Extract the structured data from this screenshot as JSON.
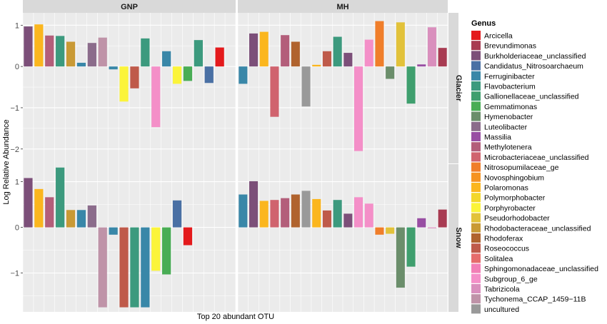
{
  "chart_data": {
    "type": "bar",
    "ylabel": "Log Relative Abundance",
    "xlabel": "Top 20 abundant OTU",
    "columns": [
      "GNP",
      "MH"
    ],
    "rows": [
      "Glacier",
      "Snow"
    ],
    "y_ticks": [
      "1",
      "0",
      "−1",
      "−2"
    ],
    "legend": {
      "title": "Genus",
      "position": "right",
      "items": [
        {
          "name": "Arcicella",
          "color": "#e41a1c"
        },
        {
          "name": "Brevundimonas",
          "color": "#a83b52"
        },
        {
          "name": "Burkholderiaceae_unclassified",
          "color": "#7c4f79"
        },
        {
          "name": "Candidatus_Nitrosoarchaeum",
          "color": "#4a70a4"
        },
        {
          "name": "Ferruginibacter",
          "color": "#3987a8"
        },
        {
          "name": "Flavobacterium",
          "color": "#3c9a7e"
        },
        {
          "name": "Gallionellaceae_unclassified",
          "color": "#3f9f6e"
        },
        {
          "name": "Gemmatimonas",
          "color": "#49ad55"
        },
        {
          "name": "Hymenobacter",
          "color": "#6b8e6b"
        },
        {
          "name": "Luteolibacter",
          "color": "#8b6c8b"
        },
        {
          "name": "Massilia",
          "color": "#984ea3"
        },
        {
          "name": "Methylotenera",
          "color": "#b35e7a"
        },
        {
          "name": "Microbacteriaceae_unclassified",
          "color": "#d0636e"
        },
        {
          "name": "Nitrosopumilaceae_ge",
          "color": "#f07e2a"
        },
        {
          "name": "Novosphingobium",
          "color": "#f59322"
        },
        {
          "name": "Polaromonas",
          "color": "#fbb61e"
        },
        {
          "name": "Polymorphobacter",
          "color": "#f3d72a"
        },
        {
          "name": "Porphyrobacter",
          "color": "#fbf43a"
        },
        {
          "name": "Pseudorhodobacter",
          "color": "#e2c23a"
        },
        {
          "name": "Rhodobacteraceae_unclassified",
          "color": "#c99a35"
        },
        {
          "name": "Rhodoferax",
          "color": "#b0632e"
        },
        {
          "name": "Roseococcus",
          "color": "#bf5a4a"
        },
        {
          "name": "Solitalea",
          "color": "#e66c6c"
        },
        {
          "name": "Sphingomonadaceae_unclassified",
          "color": "#f27fb6"
        },
        {
          "name": "Subgroup_6_ge",
          "color": "#f48fc8"
        },
        {
          "name": "Tabrizicola",
          "color": "#d98fbd"
        },
        {
          "name": "Tychonema_CCAP_1459−11B",
          "color": "#bf93a8"
        },
        {
          "name": "uncultured",
          "color": "#999999"
        }
      ]
    },
    "panels": [
      {
        "column": "GNP",
        "row": "Glacier",
        "ylim": [
          -2.35,
          1.3
        ],
        "bars": [
          {
            "genus": "Burkholderiaceae_unclassified",
            "value": 0.97
          },
          {
            "genus": "Polaromonas",
            "value": 1.02
          },
          {
            "genus": "Methylotenera",
            "value": 0.75
          },
          {
            "genus": "Flavobacterium",
            "value": 0.74
          },
          {
            "genus": "Rhodobacteraceae_unclassified",
            "value": 0.6
          },
          {
            "genus": "Ferruginibacter",
            "value": 0.09
          },
          {
            "genus": "Luteolibacter",
            "value": 0.57
          },
          {
            "genus": "Tychonema_CCAP_1459−11B",
            "value": 0.7
          },
          {
            "genus": "Ferruginibacter",
            "value": -0.07
          },
          {
            "genus": "Porphyrobacter",
            "value": -0.85
          },
          {
            "genus": "Roseococcus",
            "value": -0.53
          },
          {
            "genus": "Flavobacterium",
            "value": 0.68
          },
          {
            "genus": "Subgroup_6_ge",
            "value": -1.47
          },
          {
            "genus": "Ferruginibacter",
            "value": 0.37
          },
          {
            "genus": "Porphyrobacter",
            "value": -0.42
          },
          {
            "genus": "Gemmatimonas",
            "value": -0.35
          },
          {
            "genus": "Flavobacterium",
            "value": 0.64
          },
          {
            "genus": "Candidatus_Nitrosoarchaeum",
            "value": -0.4
          },
          {
            "genus": "Arcicella",
            "value": 0.46
          }
        ]
      },
      {
        "column": "MH",
        "row": "Glacier",
        "ylim": [
          -2.35,
          1.3
        ],
        "bars": [
          {
            "genus": "Ferruginibacter",
            "value": -0.42
          },
          {
            "genus": "Burkholderiaceae_unclassified",
            "value": 0.8
          },
          {
            "genus": "Polaromonas",
            "value": 0.84
          },
          {
            "genus": "Microbacteriaceae_unclassified",
            "value": -1.22
          },
          {
            "genus": "Methylotenera",
            "value": 0.76
          },
          {
            "genus": "Rhodoferax",
            "value": 0.6
          },
          {
            "genus": "uncultured",
            "value": -0.97
          },
          {
            "genus": "Polaromonas",
            "value": 0.04
          },
          {
            "genus": "Roseococcus",
            "value": 0.37
          },
          {
            "genus": "Flavobacterium",
            "value": 0.72
          },
          {
            "genus": "Burkholderiaceae_unclassified",
            "value": 0.33
          },
          {
            "genus": "Subgroup_6_ge",
            "value": -2.05
          },
          {
            "genus": "Subgroup_6_ge",
            "value": 0.65
          },
          {
            "genus": "Nitrosopumilaceae_ge",
            "value": 1.1
          },
          {
            "genus": "Hymenobacter",
            "value": -0.3
          },
          {
            "genus": "Pseudorhodobacter",
            "value": 1.07
          },
          {
            "genus": "Gallionellaceae_unclassified",
            "value": -0.9
          },
          {
            "genus": "Massilia",
            "value": 0.05
          },
          {
            "genus": "Tabrizicola",
            "value": 0.95
          },
          {
            "genus": "Brevundimonas",
            "value": 0.45
          }
        ]
      },
      {
        "column": "GNP",
        "row": "Snow",
        "ylim": [
          -1.85,
          1.4
        ],
        "bars": [
          {
            "genus": "Burkholderiaceae_unclassified",
            "value": 1.08
          },
          {
            "genus": "Polaromonas",
            "value": 0.84
          },
          {
            "genus": "Methylotenera",
            "value": 0.66
          },
          {
            "genus": "Flavobacterium",
            "value": 1.31
          },
          {
            "genus": "Rhodobacteraceae_unclassified",
            "value": 0.38
          },
          {
            "genus": "Ferruginibacter",
            "value": 0.38
          },
          {
            "genus": "Luteolibacter",
            "value": 0.48
          },
          {
            "genus": "Tychonema_CCAP_1459−11B",
            "value": -1.75
          },
          {
            "genus": "Ferruginibacter",
            "value": -0.16
          },
          {
            "genus": "Roseococcus",
            "value": -1.75
          },
          {
            "genus": "Flavobacterium",
            "value": -1.75
          },
          {
            "genus": "Ferruginibacter",
            "value": -1.75
          },
          {
            "genus": "Porphyrobacter",
            "value": -0.95
          },
          {
            "genus": "Gemmatimonas",
            "value": -1.03
          },
          {
            "genus": "Candidatus_Nitrosoarchaeum",
            "value": 0.59
          },
          {
            "genus": "Arcicella",
            "value": -0.39
          }
        ]
      },
      {
        "column": "MH",
        "row": "Snow",
        "ylim": [
          -1.85,
          1.4
        ],
        "bars": [
          {
            "genus": "Ferruginibacter",
            "value": 0.72
          },
          {
            "genus": "Burkholderiaceae_unclassified",
            "value": 1.01
          },
          {
            "genus": "Polaromonas",
            "value": 0.58
          },
          {
            "genus": "Microbacteriaceae_unclassified",
            "value": 0.6
          },
          {
            "genus": "Methylotenera",
            "value": 0.64
          },
          {
            "genus": "Rhodoferax",
            "value": 0.72
          },
          {
            "genus": "uncultured",
            "value": 0.8
          },
          {
            "genus": "Polaromonas",
            "value": 0.62
          },
          {
            "genus": "Roseococcus",
            "value": 0.37
          },
          {
            "genus": "Flavobacterium",
            "value": 0.6
          },
          {
            "genus": "Burkholderiaceae_unclassified",
            "value": 0.3
          },
          {
            "genus": "Subgroup_6_ge",
            "value": 0.66
          },
          {
            "genus": "Subgroup_6_ge",
            "value": 0.52
          },
          {
            "genus": "Nitrosopumilaceae_ge",
            "value": -0.16
          },
          {
            "genus": "Pseudorhodobacter",
            "value": -0.14
          },
          {
            "genus": "Hymenobacter",
            "value": -1.32
          },
          {
            "genus": "Gallionellaceae_unclassified",
            "value": -0.86
          },
          {
            "genus": "Massilia",
            "value": 0.2
          },
          {
            "genus": "Tabrizicola",
            "value": -0.02
          },
          {
            "genus": "Brevundimonas",
            "value": 0.39
          }
        ]
      }
    ]
  }
}
